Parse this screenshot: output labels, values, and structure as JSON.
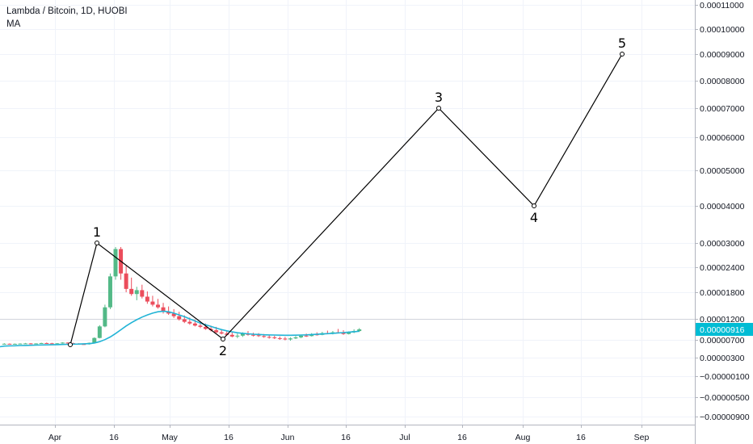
{
  "legend": {
    "symbol_line": "Lambda / Bitcoin, 1D, HUOBI",
    "indicator": "MA"
  },
  "colors": {
    "up": "#53b987",
    "down": "#eb4d5c",
    "ma": "#22b4d6",
    "wave": "#000000",
    "price_tag": "#00bcd4",
    "grid": "#e8e8e8",
    "axis_line": "#b2b5be"
  },
  "price_tag": "0.00000916",
  "chart_data": {
    "type": "candlestick",
    "title": "Lambda / Bitcoin, 1D, HUOBI",
    "xlabel": "",
    "ylabel": "",
    "y_axis_labels": [
      "0.00011000",
      "0.00010000",
      "0.00009000",
      "0.00008000",
      "0.00007000",
      "0.00006000",
      "0.00005000",
      "0.00004000",
      "0.00003000",
      "0.00002400",
      "0.00001800",
      "0.00001200",
      "0.00000700",
      "0.00000300",
      "−0.00000100",
      "−0.00000500",
      "−0.00000900"
    ],
    "x_axis_labels": [
      "Apr",
      "16",
      "May",
      "16",
      "Jun",
      "16",
      "Jul",
      "16",
      "Aug",
      "16",
      "Sep"
    ],
    "candles_ohlc_1e-8_btc": [
      [
        610,
        625,
        598,
        612
      ],
      [
        612,
        620,
        600,
        605
      ],
      [
        605,
        618,
        596,
        611
      ],
      [
        611,
        622,
        604,
        616
      ],
      [
        616,
        630,
        608,
        620
      ],
      [
        620,
        628,
        605,
        609
      ],
      [
        609,
        624,
        600,
        619
      ],
      [
        619,
        635,
        612,
        628
      ],
      [
        628,
        640,
        618,
        622
      ],
      [
        622,
        633,
        610,
        616
      ],
      [
        616,
        628,
        606,
        622
      ],
      [
        622,
        645,
        615,
        638
      ],
      [
        638,
        648,
        620,
        626
      ],
      [
        626,
        636,
        605,
        612
      ],
      [
        612,
        625,
        598,
        604
      ],
      [
        604,
        618,
        590,
        600
      ],
      [
        600,
        640,
        592,
        632
      ],
      [
        632,
        760,
        625,
        745
      ],
      [
        745,
        1050,
        735,
        1020
      ],
      [
        1020,
        1520,
        1000,
        1460
      ],
      [
        1460,
        2250,
        1420,
        2180
      ],
      [
        2180,
        2900,
        2100,
        2850
      ],
      [
        2850,
        2900,
        2100,
        2250
      ],
      [
        2250,
        2450,
        1800,
        1880
      ],
      [
        1880,
        2150,
        1720,
        1760
      ],
      [
        1760,
        1930,
        1620,
        1850
      ],
      [
        1850,
        1980,
        1660,
        1700
      ],
      [
        1700,
        1820,
        1540,
        1590
      ],
      [
        1590,
        1720,
        1480,
        1520
      ],
      [
        1520,
        1650,
        1430,
        1460
      ],
      [
        1460,
        1560,
        1320,
        1360
      ],
      [
        1360,
        1480,
        1290,
        1320
      ],
      [
        1320,
        1420,
        1220,
        1260
      ],
      [
        1260,
        1360,
        1160,
        1190
      ],
      [
        1190,
        1280,
        1100,
        1130
      ],
      [
        1130,
        1230,
        1060,
        1090
      ],
      [
        1090,
        1180,
        1020,
        1040
      ],
      [
        1040,
        1120,
        980,
        1010
      ],
      [
        1010,
        1090,
        940,
        960
      ],
      [
        960,
        1040,
        900,
        930
      ],
      [
        930,
        1010,
        860,
        880
      ],
      [
        880,
        960,
        830,
        850
      ],
      [
        850,
        920,
        800,
        820
      ],
      [
        820,
        880,
        760,
        780
      ],
      [
        780,
        850,
        740,
        800
      ],
      [
        800,
        880,
        770,
        850
      ],
      [
        850,
        910,
        800,
        820
      ],
      [
        820,
        870,
        780,
        810
      ],
      [
        810,
        860,
        770,
        790
      ],
      [
        790,
        840,
        750,
        770
      ],
      [
        770,
        820,
        730,
        760
      ],
      [
        760,
        800,
        720,
        740
      ],
      [
        740,
        780,
        700,
        730
      ],
      [
        730,
        770,
        690,
        710
      ],
      [
        710,
        760,
        680,
        735
      ],
      [
        735,
        790,
        720,
        760
      ],
      [
        760,
        820,
        740,
        800
      ],
      [
        800,
        850,
        770,
        790
      ],
      [
        790,
        860,
        780,
        830
      ],
      [
        830,
        880,
        800,
        820
      ],
      [
        820,
        890,
        810,
        860
      ],
      [
        860,
        920,
        840,
        850
      ],
      [
        850,
        910,
        830,
        880
      ],
      [
        880,
        960,
        860,
        870
      ],
      [
        870,
        930,
        820,
        840
      ],
      [
        840,
        900,
        830,
        880
      ],
      [
        880,
        950,
        860,
        910
      ],
      [
        910,
        980,
        890,
        950
      ]
    ],
    "moving_average_1e-8_btc": [
      560,
      565,
      568,
      572,
      575,
      578,
      582,
      585,
      588,
      590,
      593,
      596,
      600,
      603,
      606,
      610,
      615,
      630,
      660,
      705,
      770,
      850,
      940,
      1030,
      1110,
      1180,
      1240,
      1290,
      1330,
      1360,
      1370,
      1360,
      1330,
      1290,
      1250,
      1200,
      1150,
      1100,
      1060,
      1020,
      980,
      945,
      915,
      890,
      870,
      855,
      845,
      835,
      828,
      822,
      818,
      815,
      812,
      810,
      810,
      812,
      815,
      820,
      826,
      832,
      840,
      848,
      856,
      865,
      874,
      884,
      895,
      906
    ],
    "elliott_wave": {
      "points": [
        {
          "label": "",
          "date_frac_month": "Apr 9",
          "price": 5.9e-06
        },
        {
          "label": "1",
          "date_frac_month": "Apr 12",
          "price": 3e-05
        },
        {
          "label": "2",
          "date_frac_month": "May 16",
          "price": 7.2e-06
        },
        {
          "label": "3",
          "date_frac_month": "Jul 10",
          "price": 7e-05
        },
        {
          "label": "4",
          "date_frac_month": "Aug 4",
          "price": 4e-05
        },
        {
          "label": "5",
          "date_frac_month": "Aug 27",
          "price": 9e-05
        }
      ]
    },
    "horizontal_line_price": 1.2e-05,
    "grid": true
  }
}
